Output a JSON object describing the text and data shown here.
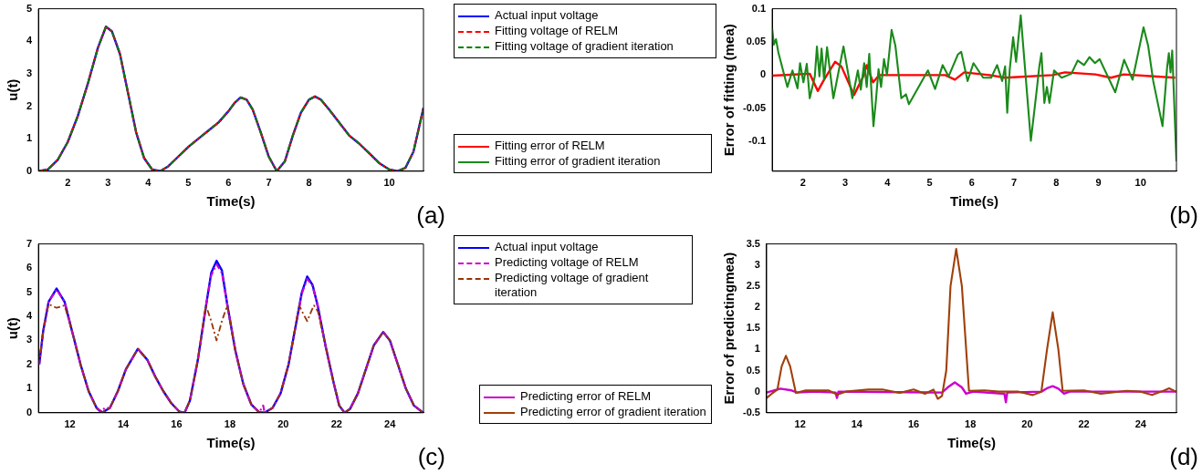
{
  "chart_data": [
    {
      "type": "line",
      "xlabel": "Time(s)",
      "ylabel": "u(t)",
      "xlim": [
        1.27,
        10.85
      ],
      "xticks": [
        2,
        3,
        4,
        5,
        6,
        7,
        8,
        9,
        10
      ],
      "ylim": [
        0,
        5
      ],
      "yticks": [
        0,
        1,
        2,
        3,
        4,
        5
      ],
      "grid": false,
      "marker": "none",
      "legend": "top right",
      "annotations": [
        "(a)"
      ],
      "series": [
        {
          "name": "Actual input voltage",
          "color": "#0000ff",
          "line_style": "solid",
          "x": [
            1.27,
            1.5,
            1.75,
            2,
            2.25,
            2.5,
            2.75,
            2.95,
            3.1,
            3.3,
            3.5,
            3.7,
            3.9,
            4.1,
            4.3,
            4.5,
            4.75,
            5,
            5.25,
            5.5,
            5.75,
            6,
            6.15,
            6.3,
            6.45,
            6.6,
            6.8,
            7,
            7.2,
            7.4,
            7.6,
            7.8,
            8,
            8.15,
            8.3,
            8.5,
            8.75,
            9,
            9.25,
            9.5,
            9.75,
            10,
            10.2,
            10.4,
            10.6,
            10.85
          ],
          "values": [
            0,
            0.05,
            0.35,
            0.9,
            1.7,
            2.7,
            3.8,
            4.45,
            4.3,
            3.6,
            2.4,
            1.2,
            0.4,
            0.05,
            0,
            0.15,
            0.45,
            0.75,
            1,
            1.25,
            1.5,
            1.85,
            2.1,
            2.27,
            2.2,
            1.9,
            1.2,
            0.45,
            0,
            0.3,
            1.1,
            1.8,
            2.2,
            2.3,
            2.2,
            1.9,
            1.5,
            1.1,
            0.85,
            0.55,
            0.25,
            0.05,
            0,
            0.1,
            0.6,
            1.95
          ]
        },
        {
          "name": "Fitting voltage of RELM",
          "color": "#ff0000",
          "line_style": "dashed",
          "x": [
            1.27,
            1.5,
            1.75,
            2,
            2.25,
            2.5,
            2.75,
            2.95,
            3.1,
            3.3,
            3.5,
            3.7,
            3.9,
            4.1,
            4.3,
            4.5,
            4.75,
            5,
            5.25,
            5.5,
            5.75,
            6,
            6.15,
            6.3,
            6.45,
            6.6,
            6.8,
            7,
            7.2,
            7.4,
            7.6,
            7.8,
            8,
            8.15,
            8.3,
            8.5,
            8.75,
            9,
            9.25,
            9.5,
            9.75,
            10,
            10.2,
            10.4,
            10.6,
            10.85
          ],
          "values": [
            0,
            0.05,
            0.35,
            0.9,
            1.7,
            2.7,
            3.8,
            4.45,
            4.3,
            3.6,
            2.4,
            1.2,
            0.4,
            0.05,
            0,
            0.15,
            0.45,
            0.75,
            1,
            1.25,
            1.5,
            1.85,
            2.1,
            2.27,
            2.2,
            1.9,
            1.2,
            0.45,
            0,
            0.3,
            1.1,
            1.8,
            2.2,
            2.3,
            2.2,
            1.9,
            1.5,
            1.1,
            0.85,
            0.55,
            0.25,
            0.05,
            0,
            0.1,
            0.6,
            1.95
          ]
        },
        {
          "name": "Fitting voltage of gradient iteration",
          "color": "#008000",
          "line_style": "dashed",
          "x": [
            1.27,
            1.5,
            1.75,
            2,
            2.25,
            2.5,
            2.75,
            2.95,
            3.1,
            3.3,
            3.5,
            3.7,
            3.9,
            4.1,
            4.3,
            4.5,
            4.75,
            5,
            5.25,
            5.5,
            5.75,
            6,
            6.15,
            6.3,
            6.45,
            6.6,
            6.8,
            7,
            7.2,
            7.4,
            7.6,
            7.8,
            8,
            8.15,
            8.3,
            8.5,
            8.75,
            9,
            9.25,
            9.5,
            9.75,
            10,
            10.2,
            10.4,
            10.6,
            10.85
          ],
          "values": [
            0,
            0.05,
            0.35,
            0.9,
            1.7,
            2.7,
            3.8,
            4.45,
            4.3,
            3.6,
            2.4,
            1.2,
            0.4,
            0.05,
            0,
            0.15,
            0.45,
            0.75,
            1,
            1.25,
            1.5,
            1.85,
            2.1,
            2.27,
            2.2,
            1.9,
            1.2,
            0.45,
            0,
            0.3,
            1.1,
            1.8,
            2.2,
            2.3,
            2.2,
            1.9,
            1.5,
            1.1,
            0.85,
            0.55,
            0.25,
            0.05,
            0,
            0.1,
            0.6,
            1.95
          ]
        }
      ]
    },
    {
      "type": "line",
      "xlabel": "Time(s)",
      "ylabel": "Error of fitting (mea)",
      "xlim": [
        1.27,
        10.85
      ],
      "xticks": [
        2,
        3,
        4,
        5,
        6,
        7,
        8,
        9,
        10
      ],
      "ylim": [
        -0.145,
        0.1
      ],
      "yticks": [
        -0.1,
        -0.05,
        0,
        0.05,
        0.1
      ],
      "grid": false,
      "marker": "none",
      "legend": "bottom left",
      "annotations": [
        "(b)"
      ],
      "series": [
        {
          "name": "Fitting error of RELM",
          "color": "#ff0000",
          "line_style": "solid",
          "x": [
            1.27,
            2.16,
            2.35,
            2.5,
            2.76,
            2.91,
            3.21,
            3.43,
            3.51,
            3.66,
            3.81,
            4.93,
            5.37,
            5.6,
            5.82,
            6.42,
            6.79,
            7.91,
            8.21,
            8.93,
            9.3,
            9.6,
            10.82
          ],
          "values": [
            -0.001,
            0.002,
            -0.024,
            -0.007,
            0.02,
            0.013,
            -0.03,
            -0.002,
            0.015,
            -0.011,
            0,
            0,
            0,
            -0.007,
            0.004,
            0,
            -0.004,
            0,
            0.004,
            0.001,
            -0.004,
            0.001,
            -0.004
          ]
        },
        {
          "name": "Fitting error of gradient iteration",
          "color": "#1a8a1a",
          "line_style": "solid",
          "x": [
            1.27,
            1.31,
            1.36,
            1.42,
            1.63,
            1.75,
            1.87,
            1.93,
            2.01,
            2.09,
            2.16,
            2.28,
            2.33,
            2.39,
            2.44,
            2.5,
            2.57,
            2.72,
            2.96,
            3.17,
            3.3,
            3.37,
            3.45,
            3.51,
            3.57,
            3.67,
            3.73,
            3.79,
            3.85,
            3.92,
            3.99,
            4.1,
            4.19,
            4.33,
            4.44,
            4.51,
            4.59,
            4.96,
            5.13,
            5.31,
            5.45,
            5.67,
            5.75,
            5.9,
            6.04,
            6.27,
            6.46,
            6.6,
            6.72,
            6.79,
            6.84,
            6.9,
            6.98,
            7.05,
            7.16,
            7.4,
            7.54,
            7.6,
            7.65,
            7.72,
            7.78,
            7.84,
            7.95,
            8.13,
            8.36,
            8.51,
            8.66,
            8.79,
            8.92,
            9.03,
            9.4,
            9.61,
            9.81,
            10.07,
            10.18,
            10.3,
            10.52,
            10.63,
            10.67,
            10.71,
            10.75,
            10.85
          ],
          "values": [
            0.07,
            0.046,
            0.054,
            0.033,
            -0.018,
            0.007,
            -0.02,
            0.018,
            -0.011,
            0.017,
            -0.035,
            -0.002,
            0.043,
            -0.002,
            0.04,
            -0.007,
            0.042,
            -0.035,
            0.043,
            -0.035,
            0.007,
            -0.022,
            0.018,
            -0.018,
            0.032,
            -0.077,
            -0.037,
            0.009,
            -0.018,
            0.024,
            0,
            0.068,
            0.044,
            -0.035,
            -0.029,
            -0.044,
            -0.035,
            0.007,
            -0.021,
            0.015,
            -0.002,
            0.031,
            0.035,
            -0.009,
            0.018,
            -0.004,
            -0.004,
            0.015,
            -0.009,
            0.013,
            -0.057,
            0.009,
            0.057,
            0.02,
            0.09,
            -0.099,
            -0.022,
            0.013,
            0.033,
            -0.042,
            -0.018,
            -0.042,
            0.007,
            -0.004,
            0.002,
            0.022,
            0.015,
            0.027,
            0.018,
            0.024,
            -0.026,
            0.023,
            -0.007,
            0.072,
            0.044,
            -0.009,
            -0.077,
            0.012,
            0.033,
            0.004,
            0.037,
            -0.13
          ]
        }
      ]
    },
    {
      "type": "line",
      "xlabel": "Time(s)",
      "ylabel": "u(t)",
      "xlim": [
        10.82,
        25.26
      ],
      "xticks": [
        12,
        14,
        16,
        18,
        20,
        22,
        24
      ],
      "ylim": [
        0,
        7
      ],
      "yticks": [
        0,
        1,
        2,
        3,
        4,
        5,
        6,
        7
      ],
      "grid": false,
      "marker": "none",
      "legend": "top right",
      "annotations": [
        "(c)"
      ],
      "series": [
        {
          "name": "Actual input voltage",
          "color": "#0000ff",
          "line_style": "solid",
          "x": [
            10.85,
            11,
            11.2,
            11.5,
            11.8,
            12.1,
            12.4,
            12.7,
            13,
            13.2,
            13.5,
            13.8,
            14.1,
            14.55,
            14.9,
            15.2,
            15.5,
            15.8,
            16.1,
            16.3,
            16.5,
            16.8,
            17.1,
            17.3,
            17.5,
            17.7,
            17.9,
            18.2,
            18.5,
            18.8,
            19.1,
            19.3,
            19.6,
            19.9,
            20.2,
            20.5,
            20.7,
            20.9,
            21.1,
            21.3,
            21.6,
            21.9,
            22.1,
            22.3,
            22.5,
            22.8,
            23.1,
            23.4,
            23.75,
            24,
            24.3,
            24.6,
            24.9,
            25.25
          ],
          "values": [
            2,
            3.4,
            4.6,
            5.15,
            4.6,
            3.3,
            2,
            0.9,
            0.2,
            0,
            0.2,
            0.9,
            1.8,
            2.65,
            2.2,
            1.5,
            0.9,
            0.4,
            0.05,
            0,
            0.5,
            2.2,
            4.4,
            5.8,
            6.3,
            5.9,
            4.5,
            2.6,
            1.2,
            0.35,
            0.02,
            0,
            0.2,
            0.8,
            2,
            3.8,
            5,
            5.65,
            5.3,
            4.4,
            2.7,
            1.2,
            0.3,
            0,
            0.15,
            0.8,
            1.8,
            2.8,
            3.35,
            3,
            2,
            1,
            0.3,
            0
          ]
        },
        {
          "name": "Predicting voltage of RELM",
          "color": "#cc00cc",
          "line_style": "dashed",
          "x": [
            10.85,
            11,
            11.2,
            11.5,
            11.8,
            12.1,
            12.4,
            12.7,
            13,
            13.2,
            13.3,
            13.5,
            13.8,
            14.1,
            14.55,
            14.9,
            15.2,
            15.5,
            15.8,
            16.1,
            16.3,
            16.5,
            16.8,
            17.1,
            17.3,
            17.5,
            17.7,
            17.9,
            18.2,
            18.5,
            18.8,
            19.1,
            19.25,
            19.3,
            19.6,
            19.9,
            20.2,
            20.5,
            20.7,
            20.9,
            21.1,
            21.3,
            21.6,
            21.9,
            22.1,
            22.3,
            22.5,
            22.8,
            23.1,
            23.4,
            23.75,
            24,
            24.3,
            24.6,
            24.9,
            25.25
          ],
          "values": [
            2,
            3.4,
            4.6,
            5.1,
            4.6,
            3.3,
            2,
            0.9,
            0.2,
            0.05,
            0.2,
            0.2,
            0.9,
            1.8,
            2.65,
            2.2,
            1.5,
            0.9,
            0.4,
            0.05,
            0,
            0.5,
            2.2,
            4.4,
            5.7,
            6.15,
            5.8,
            4.5,
            2.6,
            1.2,
            0.35,
            0.02,
            0.3,
            0,
            0.2,
            0.8,
            2,
            3.8,
            4.95,
            5.55,
            5.25,
            4.4,
            2.7,
            1.2,
            0.3,
            0,
            0.15,
            0.8,
            1.8,
            2.8,
            3.35,
            3,
            2,
            1,
            0.3,
            0
          ]
        },
        {
          "name": "Predicting voltage of gradient iteration",
          "color": "#993300",
          "line_style": "dashed",
          "x": [
            10.85,
            11,
            11.2,
            11.5,
            11.8,
            12.1,
            12.4,
            12.7,
            13,
            13.2,
            13.5,
            13.8,
            14.1,
            14.55,
            14.9,
            15.2,
            15.5,
            15.8,
            16.1,
            16.3,
            16.5,
            16.8,
            17.1,
            17.3,
            17.5,
            17.7,
            17.9,
            18.2,
            18.5,
            18.8,
            19.1,
            19.3,
            19.6,
            19.9,
            20.2,
            20.6,
            20.75,
            20.9,
            21.05,
            21.15,
            21.3,
            21.6,
            21.9,
            22.1,
            22.3,
            22.5,
            22.8,
            23.1,
            23.4,
            23.75,
            24,
            24.3,
            24.6,
            24.9,
            25.25
          ],
          "values": [
            2.1,
            3.4,
            4.5,
            4.35,
            4.45,
            3.3,
            2,
            0.9,
            0.2,
            0,
            0.2,
            0.9,
            1.8,
            2.65,
            2.2,
            1.5,
            0.9,
            0.4,
            0.05,
            0,
            0.5,
            2.2,
            4.45,
            3.8,
            3,
            3.8,
            4.45,
            2.6,
            1.2,
            0.35,
            0.02,
            0,
            0.2,
            0.8,
            2,
            4.45,
            4.1,
            3.8,
            4.2,
            4.45,
            4.2,
            2.7,
            1.2,
            0.3,
            0,
            0.15,
            0.8,
            1.8,
            2.8,
            3.35,
            3,
            2,
            1,
            0.3,
            0
          ]
        }
      ]
    },
    {
      "type": "line",
      "xlabel": "Time(s)",
      "ylabel": "Error of predictingmea)",
      "xlim": [
        10.82,
        25.26
      ],
      "xticks": [
        12,
        14,
        16,
        18,
        20,
        22,
        24
      ],
      "ylim": [
        -0.5,
        3.5
      ],
      "yticks": [
        -0.5,
        0,
        0.5,
        1,
        1.5,
        2,
        2.5,
        3,
        3.5
      ],
      "grid": false,
      "marker": "none",
      "legend": "bottom left",
      "annotations": [
        "(d)"
      ],
      "series": [
        {
          "name": "Predicting error of RELM",
          "color": "#cc00cc",
          "line_style": "solid",
          "x": [
            10.82,
            11.3,
            11.7,
            11.9,
            12.5,
            13.25,
            13.3,
            13.35,
            17,
            17.2,
            17.45,
            17.7,
            17.85,
            18.1,
            19.2,
            19.25,
            19.3,
            20.5,
            20.7,
            20.9,
            21.1,
            21.3,
            21.5,
            25.25
          ],
          "values": [
            -0.02,
            0.07,
            0.03,
            -0.02,
            0,
            -0.02,
            -0.15,
            0,
            -0.02,
            0.1,
            0.22,
            0.1,
            -0.05,
            0,
            -0.05,
            -0.25,
            -0.02,
            0,
            0.08,
            0.13,
            0.07,
            -0.05,
            0,
            0
          ]
        },
        {
          "name": "Predicting error of gradient iteration",
          "color": "#a0400a",
          "line_style": "solid",
          "x": [
            10.82,
            11,
            11.2,
            11.35,
            11.5,
            11.65,
            11.85,
            12.2,
            13,
            13.3,
            13.6,
            14.4,
            14.9,
            15.5,
            16,
            16.4,
            16.7,
            16.85,
            17,
            17.15,
            17.3,
            17.5,
            17.7,
            17.95,
            18.5,
            19,
            19.7,
            20.2,
            20.5,
            20.7,
            20.9,
            21.1,
            21.25,
            22,
            22.6,
            23.5,
            24,
            24.4,
            24.8,
            25,
            25.25
          ],
          "values": [
            -0.15,
            -0.05,
            0.05,
            0.6,
            0.85,
            0.6,
            -0.03,
            0.03,
            0.03,
            -0.07,
            0,
            0.05,
            0.05,
            -0.03,
            0.05,
            -0.05,
            0.05,
            -0.17,
            -0.1,
            0.5,
            2.5,
            3.38,
            2.5,
            0.02,
            0.03,
            0,
            0,
            -0.08,
            0,
            1,
            1.88,
            1,
            0.02,
            0.03,
            -0.05,
            0.02,
            0,
            -0.08,
            0.02,
            0.08,
            0
          ]
        }
      ]
    }
  ]
}
